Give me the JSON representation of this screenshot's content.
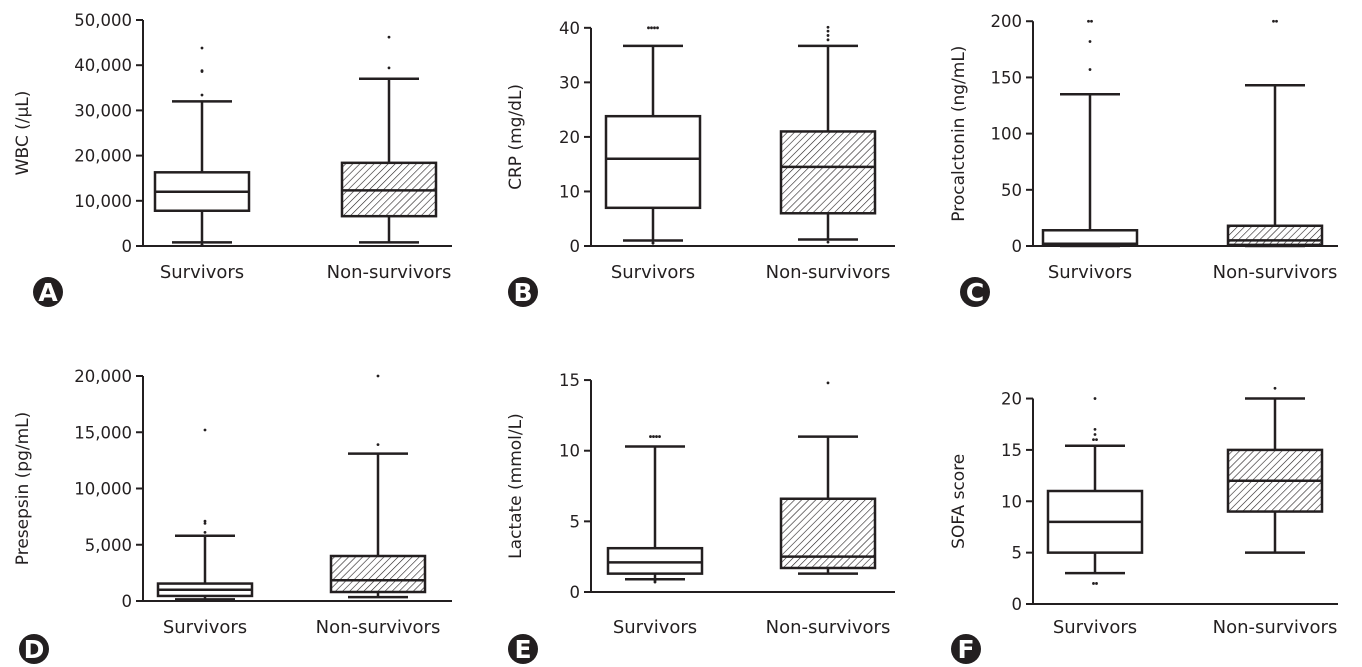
{
  "chart_data": [
    {
      "panel": "A",
      "type": "box",
      "ylabel": "WBC (/μL)",
      "ylim": [
        0,
        50000
      ],
      "ticks": [
        0,
        10000,
        20000,
        30000,
        40000,
        50000
      ],
      "tick_labels": [
        "0",
        "10,000",
        "20,000",
        "30,000",
        "40,000",
        "50,000"
      ],
      "categories": [
        "Survivors",
        "Non-survivors"
      ],
      "series": [
        {
          "whisker_low": 800,
          "q1": 7800,
          "median": 12000,
          "q3": 16300,
          "whisker_high": 32000,
          "outliers": [
            200,
            300,
            33400,
            38600,
            38800,
            43800
          ],
          "hatched": false
        },
        {
          "whisker_low": 800,
          "q1": 6600,
          "median": 12300,
          "q3": 18400,
          "whisker_high": 37000,
          "outliers": [
            39400,
            46200
          ],
          "hatched": true
        }
      ]
    },
    {
      "panel": "B",
      "type": "box",
      "ylabel": "CRP (mg/dL)",
      "ylim": [
        0,
        44
      ],
      "ticks": [
        0,
        10,
        20,
        30,
        40
      ],
      "tick_labels": [
        "0",
        "10",
        "20",
        "30",
        "40"
      ],
      "categories": [
        "Survivors",
        "Non-survivors"
      ],
      "series": [
        {
          "whisker_low": 1.0,
          "q1": 7.0,
          "median": 16.0,
          "q3": 23.8,
          "whisker_high": 36.7,
          "outliers": [
            0.5,
            0.6,
            40.0,
            40.0,
            40.0,
            40.0
          ],
          "hatched": false
        },
        {
          "whisker_low": 1.2,
          "q1": 6.0,
          "median": 14.5,
          "q3": 21.0,
          "whisker_high": 36.7,
          "outliers": [
            0.7,
            37.8,
            38.6,
            39.4,
            40.1
          ],
          "hatched": true
        }
      ]
    },
    {
      "panel": "C",
      "type": "box",
      "ylabel": "Procalctonin (ng/mL)",
      "ylim": [
        0,
        210
      ],
      "ticks": [
        0,
        50,
        100,
        150,
        200
      ],
      "tick_labels": [
        "0",
        "50",
        "100",
        "150",
        "200"
      ],
      "categories": [
        "Survivors",
        "Non-survivors"
      ],
      "series": [
        {
          "whisker_low": 0,
          "q1": 0.5,
          "median": 2,
          "q3": 14,
          "whisker_high": 135,
          "outliers": [
            157,
            182,
            200,
            200
          ],
          "hatched": false
        },
        {
          "whisker_low": 0,
          "q1": 1,
          "median": 5,
          "q3": 18,
          "whisker_high": 143,
          "outliers": [
            200,
            200
          ],
          "hatched": true
        }
      ]
    },
    {
      "panel": "D",
      "type": "box",
      "ylabel": "Presepsin (pg/mL)",
      "ylim": [
        0,
        20000
      ],
      "ticks": [
        0,
        5000,
        10000,
        15000,
        20000
      ],
      "tick_labels": [
        "0",
        "5,000",
        "10,000",
        "15,000",
        "20,000"
      ],
      "categories": [
        "Survivors",
        "Non-survivors"
      ],
      "series": [
        {
          "whisker_low": 150,
          "q1": 450,
          "median": 1000,
          "q3": 1550,
          "whisker_high": 5800,
          "outliers": [
            6100,
            6900,
            7100,
            15200
          ],
          "hatched": false
        },
        {
          "whisker_low": 350,
          "q1": 800,
          "median": 1850,
          "q3": 4000,
          "whisker_high": 13100,
          "outliers": [
            13900,
            20000
          ],
          "hatched": true
        }
      ]
    },
    {
      "panel": "E",
      "type": "box",
      "ylabel": "Lactate (mmol/L)",
      "ylim": [
        0,
        15.5
      ],
      "ticks": [
        0,
        5,
        10,
        15
      ],
      "tick_labels": [
        "0",
        "5",
        "10",
        "15"
      ],
      "categories": [
        "Survivors",
        "Non-survivors"
      ],
      "series": [
        {
          "whisker_low": 0.9,
          "q1": 1.3,
          "median": 2.1,
          "q3": 3.1,
          "whisker_high": 10.3,
          "outliers": [
            0.7,
            0.8,
            11.0,
            11.0,
            11.0,
            11.0
          ],
          "hatched": false
        },
        {
          "whisker_low": 1.3,
          "q1": 1.7,
          "median": 2.5,
          "q3": 6.6,
          "whisker_high": 11.0,
          "outliers": [
            14.8
          ],
          "hatched": true
        }
      ]
    },
    {
      "panel": "F",
      "type": "box",
      "ylabel": "SOFA score",
      "ylim": [
        0,
        22
      ],
      "ticks": [
        0,
        5,
        10,
        15,
        20
      ],
      "tick_labels": [
        "0",
        "5",
        "10",
        "15",
        "20"
      ],
      "categories": [
        "Survivors",
        "Non-survivors"
      ],
      "series": [
        {
          "whisker_low": 3,
          "q1": 5,
          "median": 8,
          "q3": 11,
          "whisker_high": 15.4,
          "outliers": [
            2,
            2,
            16,
            16,
            16.5,
            17,
            20
          ],
          "hatched": false
        },
        {
          "whisker_low": 5,
          "q1": 9,
          "median": 12,
          "q3": 15,
          "whisker_high": 20,
          "outliers": [
            21
          ],
          "hatched": true
        }
      ]
    }
  ],
  "colors": {
    "ink": "#231f20",
    "badge": "#231f20",
    "fill": "#ffffff"
  }
}
